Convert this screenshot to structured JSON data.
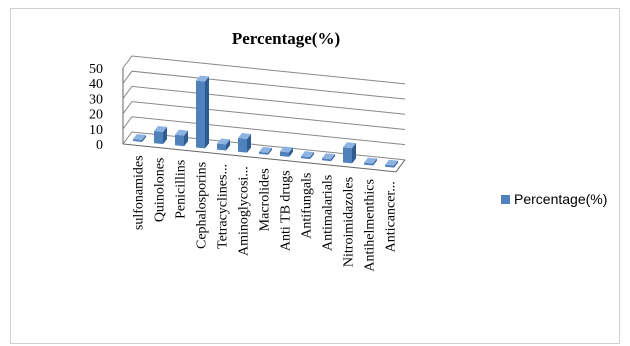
{
  "chart_data": {
    "type": "bar",
    "title": "Percentage(%)",
    "categories": [
      "sulfonamides",
      "Quinolones",
      "Penicillins",
      "Cephalosporins",
      "Tetracyclines...",
      "Aminoglycosi...",
      "Macrolides",
      "Anti TB drugs",
      "Antifungals",
      "Antimalarials",
      "Nitroimidazoles",
      "Antihelmenthics",
      "Anticancer..."
    ],
    "series": [
      {
        "name": "Percentage(%)",
        "values": [
          1,
          8,
          7,
          44,
          4,
          9,
          1,
          3,
          1,
          1,
          10,
          1,
          1
        ]
      }
    ],
    "ylim": [
      0,
      50
    ],
    "yticks": [
      0,
      10,
      20,
      30,
      40,
      50
    ],
    "xlabel": "",
    "ylabel": "",
    "grid": true,
    "legend_position": "right",
    "colors": {
      "bar_front": "#4f81bd",
      "bar_side": "#2f5b93",
      "bar_top": "#8db3e2"
    }
  }
}
